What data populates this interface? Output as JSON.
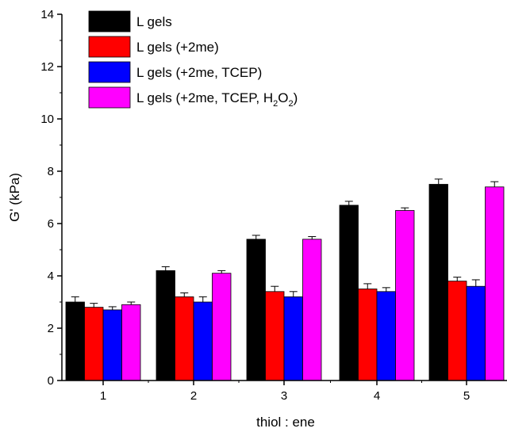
{
  "chart_data": {
    "type": "bar",
    "title": "",
    "xlabel": "thiol : ene",
    "ylabel": "G' (kPa)",
    "ylim": [
      0,
      14
    ],
    "yticks": [
      0,
      2,
      4,
      6,
      8,
      10,
      12,
      14
    ],
    "categories": [
      "1",
      "2",
      "3",
      "4",
      "5"
    ],
    "series": [
      {
        "name": "L gels",
        "color": "#000000",
        "values": [
          3.0,
          4.2,
          5.4,
          6.7,
          7.5
        ],
        "errors": [
          0.2,
          0.15,
          0.15,
          0.15,
          0.2
        ]
      },
      {
        "name": "L gels (+2me)",
        "color": "#ff0000",
        "values": [
          2.8,
          3.2,
          3.4,
          3.5,
          3.8
        ],
        "errors": [
          0.15,
          0.15,
          0.2,
          0.2,
          0.15
        ]
      },
      {
        "name": "L gels (+2me, TCEP)",
        "color": "#0000ff",
        "values": [
          2.7,
          3.0,
          3.2,
          3.4,
          3.6
        ],
        "errors": [
          0.12,
          0.2,
          0.2,
          0.15,
          0.25
        ]
      },
      {
        "name": "L gels (+2me, TCEP, H2O2)",
        "color": "#ff00ff",
        "values": [
          2.9,
          4.1,
          5.4,
          6.5,
          7.4
        ],
        "errors": [
          0.1,
          0.1,
          0.1,
          0.1,
          0.2
        ]
      }
    ],
    "legend": {
      "position": "top-left",
      "items": [
        {
          "label": "L gels",
          "color": "#000000"
        },
        {
          "label": "L gels (+2me)",
          "color": "#ff0000"
        },
        {
          "label": "L gels (+2me, TCEP)",
          "color": "#0000ff"
        },
        {
          "label_parts": [
            "L gels (+2me, TCEP, H",
            "2",
            "O",
            "2",
            ")"
          ],
          "color": "#ff00ff"
        }
      ]
    }
  }
}
